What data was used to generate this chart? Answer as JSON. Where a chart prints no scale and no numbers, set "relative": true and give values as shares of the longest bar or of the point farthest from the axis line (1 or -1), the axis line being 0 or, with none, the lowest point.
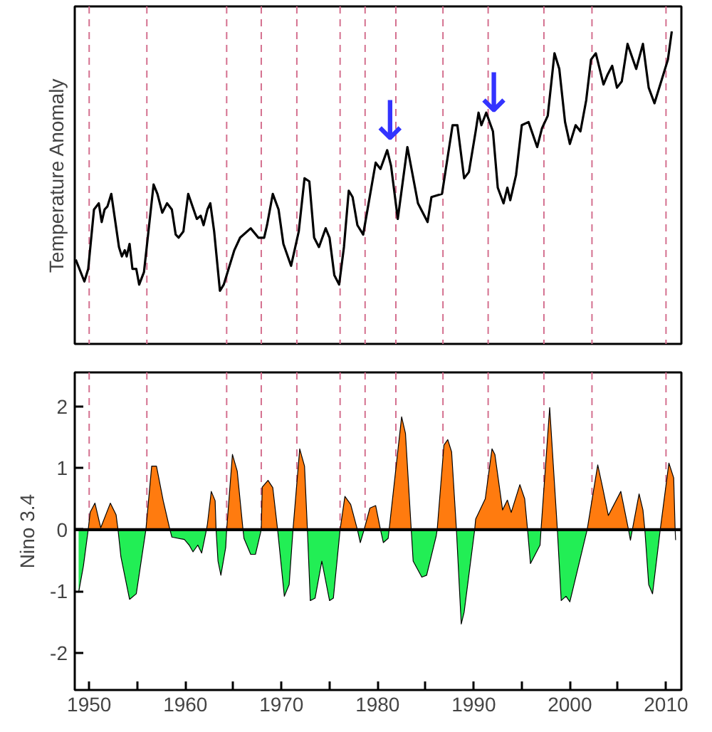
{
  "chart_data": [
    {
      "type": "line",
      "ylabel": "Temperature Anomaly",
      "relative": true,
      "xlim": [
        1948.5,
        2011.6
      ],
      "tick_labels": false,
      "grid": false,
      "x": [
        1948.6,
        1949.5,
        1949.9,
        1950.5,
        1951.0,
        1951.3,
        1951.6,
        1951.9,
        1952.3,
        1953.1,
        1953.4,
        1953.7,
        1953.9,
        1954.2,
        1954.5,
        1954.9,
        1955.2,
        1955.7,
        1956.7,
        1957.1,
        1957.6,
        1958.1,
        1958.6,
        1959.0,
        1959.3,
        1959.8,
        1960.3,
        1961.2,
        1961.6,
        1961.9,
        1962.3,
        1962.6,
        1963.0,
        1963.6,
        1964.0,
        1965.1,
        1965.7,
        1966.8,
        1967.6,
        1968.2,
        1968.5,
        1969.1,
        1969.7,
        1970.2,
        1971.0,
        1971.8,
        1972.4,
        1972.9,
        1973.4,
        1973.9,
        1974.6,
        1975.0,
        1975.5,
        1976.0,
        1976.5,
        1977.0,
        1977.4,
        1977.9,
        1978.5,
        1979.8,
        1980.3,
        1981.0,
        1981.4,
        1982.1,
        1983.1,
        1984.2,
        1985.2,
        1985.6,
        1986.7,
        1987.8,
        1988.3,
        1989.0,
        1989.5,
        1990.2,
        1990.5,
        1990.8,
        1991.3,
        1992.0,
        1992.5,
        1993.1,
        1993.5,
        1993.8,
        1994.4,
        1995.0,
        1995.7,
        1996.6,
        1997.1,
        1997.7,
        1998.4,
        1998.9,
        1999.5,
        2000.0,
        2000.6,
        2001.1,
        2001.7,
        2002.2,
        2002.7,
        2003.5,
        2003.9,
        2004.4,
        2004.9,
        2005.4,
        2006.0,
        2006.9,
        2007.6,
        2008.2,
        2008.8,
        2010.2,
        2010.6
      ],
      "series": [
        {
          "color": "#000000",
          "values": [
            0.27,
            0.2,
            0.24,
            0.43,
            0.45,
            0.39,
            0.43,
            0.44,
            0.48,
            0.31,
            0.28,
            0.3,
            0.28,
            0.32,
            0.24,
            0.24,
            0.19,
            0.23,
            0.51,
            0.48,
            0.42,
            0.45,
            0.43,
            0.35,
            0.34,
            0.36,
            0.48,
            0.4,
            0.41,
            0.38,
            0.43,
            0.45,
            0.36,
            0.17,
            0.19,
            0.3,
            0.34,
            0.37,
            0.34,
            0.34,
            0.38,
            0.48,
            0.43,
            0.32,
            0.25,
            0.36,
            0.53,
            0.52,
            0.34,
            0.31,
            0.37,
            0.34,
            0.22,
            0.19,
            0.31,
            0.49,
            0.47,
            0.38,
            0.35,
            0.58,
            0.56,
            0.62,
            0.57,
            0.4,
            0.63,
            0.45,
            0.39,
            0.47,
            0.48,
            0.7,
            0.7,
            0.53,
            0.55,
            0.68,
            0.74,
            0.7,
            0.74,
            0.68,
            0.5,
            0.45,
            0.5,
            0.46,
            0.54,
            0.7,
            0.71,
            0.63,
            0.69,
            0.73,
            0.93,
            0.88,
            0.71,
            0.64,
            0.7,
            0.68,
            0.78,
            0.91,
            0.93,
            0.83,
            0.86,
            0.89,
            0.82,
            0.84,
            0.96,
            0.88,
            0.96,
            0.82,
            0.77,
            0.91,
            1.0
          ]
        }
      ],
      "ref_lines": [
        {
          "axis": "x",
          "value": 1950.0,
          "color": "#d4708f",
          "line_style": "dashed"
        },
        {
          "axis": "x",
          "value": 1956.0,
          "color": "#d4708f",
          "line_style": "dashed"
        },
        {
          "axis": "x",
          "value": 1964.3,
          "color": "#d4708f",
          "line_style": "dashed"
        },
        {
          "axis": "x",
          "value": 1967.9,
          "color": "#d4708f",
          "line_style": "dashed"
        },
        {
          "axis": "x",
          "value": 1971.6,
          "color": "#d4708f",
          "line_style": "dashed"
        },
        {
          "axis": "x",
          "value": 1976.1,
          "color": "#d4708f",
          "line_style": "dashed"
        },
        {
          "axis": "x",
          "value": 1978.7,
          "color": "#d4708f",
          "line_style": "dashed"
        },
        {
          "axis": "x",
          "value": 1981.9,
          "color": "#d4708f",
          "line_style": "dashed"
        },
        {
          "axis": "x",
          "value": 1986.8,
          "color": "#d4708f",
          "line_style": "dashed"
        },
        {
          "axis": "x",
          "value": 1991.5,
          "color": "#d4708f",
          "line_style": "dashed"
        },
        {
          "axis": "x",
          "value": 1997.3,
          "color": "#d4708f",
          "line_style": "dashed"
        },
        {
          "axis": "x",
          "value": 2002.3,
          "color": "#d4708f",
          "line_style": "dashed"
        },
        {
          "axis": "x",
          "value": 2010.0,
          "color": "#d4708f",
          "line_style": "dashed"
        }
      ],
      "annotations": [
        {
          "text": "↓",
          "x": 1981.3,
          "y": 0.64
        },
        {
          "text": "↓",
          "x": 1992.1,
          "y": 0.73
        }
      ]
    },
    {
      "type": "area",
      "ylabel": "Nino 3.4",
      "xlim": [
        1948.5,
        2011.6
      ],
      "ylim": [
        -2.6,
        2.55
      ],
      "yticks": [
        -2,
        -1,
        0,
        1,
        2
      ],
      "grid": false,
      "xticks": [
        1950,
        {
          "value": 1955,
          "label": null
        },
        1960,
        {
          "value": 1965,
          "label": null
        },
        1970,
        {
          "value": 1975,
          "label": null
        },
        1980,
        {
          "value": 1985,
          "label": null
        },
        1990,
        {
          "value": 1995,
          "label": null
        },
        2000,
        {
          "value": 2005,
          "label": null
        },
        2010
      ],
      "series": [
        {
          "color": "#ff7b0f",
          "x": [
            1949.9,
            1950.1,
            1950.6,
            1951.2,
            1952.2,
            1952.8,
            1953.0,
            1955.9,
            1956.5,
            1957.0,
            1957.7,
            1958.4,
            1962.2,
            1962.3,
            1962.7,
            1963.1,
            1963.2,
            1964.3,
            1964.9,
            1965.4,
            1966.0,
            1967.9,
            1968.0,
            1968.6,
            1969.1,
            1969.6,
            1971.2,
            1971.9,
            1972.4,
            1972.7,
            1976.1,
            1976.6,
            1977.2,
            1977.9,
            1978.6,
            1979.2,
            1979.8,
            1980.3,
            1981.2,
            1982.5,
            1982.9,
            1983.5,
            1986.2,
            1986.9,
            1987.3,
            1987.7,
            1988.2,
            1990.1,
            1990.2,
            1991.2,
            1991.9,
            1992.2,
            1993.0,
            1993.5,
            1993.9,
            1994.8,
            1995.3,
            1995.6,
            1997.0,
            1997.9,
            1998.7,
            2001.8,
            2002.9,
            2003.4,
            2004.0,
            2005.3,
            2006.1,
            2006.5,
            2007.2,
            2007.6,
            2007.8,
            2009.4,
            2010.3,
            2010.8,
            2010.95
          ],
          "values": [
            0,
            0.28,
            0.43,
            0.03,
            0.43,
            0.24,
            0,
            0,
            1.03,
            1.03,
            0.47,
            0,
            0,
            0.09,
            0.62,
            0.47,
            0,
            0,
            1.22,
            0.95,
            0,
            0,
            0.69,
            0.8,
            0.68,
            0,
            0,
            1.31,
            1.03,
            0,
            0,
            0.54,
            0.41,
            0,
            0,
            0.35,
            0.39,
            0,
            0,
            1.83,
            1.56,
            0,
            0,
            1.37,
            1.46,
            1.26,
            0,
            0,
            0.17,
            0.5,
            1.31,
            1.22,
            0.32,
            0.48,
            0.28,
            0.73,
            0.5,
            0,
            0,
            1.98,
            0,
            0,
            1.05,
            0.69,
            0.23,
            0.62,
            0,
            0,
            0.58,
            0.32,
            0,
            0,
            1.08,
            0.84,
            0
          ]
        },
        {
          "color": "#22ee55",
          "x": [
            1948.9,
            1949.4,
            1949.9,
            1953.0,
            1953.3,
            1954.2,
            1954.9,
            1955.9,
            1958.4,
            1958.6,
            1959.9,
            1960.4,
            1960.8,
            1961.3,
            1961.7,
            1962.2,
            1963.2,
            1963.4,
            1963.7,
            1964.2,
            1964.3,
            1966.0,
            1966.1,
            1966.8,
            1967.3,
            1967.9,
            1969.6,
            1970.3,
            1970.8,
            1971.2,
            1972.7,
            1973.0,
            1973.5,
            1974.2,
            1975.0,
            1975.4,
            1976.1,
            1977.9,
            1978.2,
            1978.6,
            1980.3,
            1980.6,
            1981.1,
            1981.2,
            1983.5,
            1983.7,
            1984.6,
            1985.1,
            1986.1,
            1986.2,
            1988.2,
            1988.7,
            1989.0,
            1990.1,
            1995.6,
            1995.9,
            1996.9,
            1997.0,
            1998.7,
            1999.1,
            1999.6,
            2000.0,
            2001.8,
            2006.1,
            2006.3,
            2006.5,
            2007.8,
            2008.2,
            2008.6,
            2009.4,
            2010.95,
            2011.0
          ],
          "values": [
            -1.02,
            -0.59,
            0,
            0,
            -0.44,
            -1.13,
            -1.04,
            0,
            0,
            -0.12,
            -0.16,
            -0.25,
            -0.36,
            -0.25,
            -0.38,
            0,
            0,
            -0.51,
            -0.74,
            -0.29,
            0,
            0,
            -0.14,
            -0.4,
            -0.4,
            0,
            0,
            -1.08,
            -0.89,
            0,
            0,
            -1.15,
            -1.11,
            -0.51,
            -1.15,
            -1.11,
            0,
            0,
            -0.21,
            0,
            0,
            -0.21,
            -0.14,
            0,
            0,
            -0.51,
            -0.77,
            -0.74,
            -0.1,
            0,
            0,
            -1.53,
            -1.34,
            0,
            0,
            -0.55,
            -0.25,
            0,
            0,
            -1.15,
            -1.08,
            -1.17,
            0,
            0,
            -0.17,
            0,
            0,
            -0.89,
            -1.04,
            0,
            0,
            -0.17
          ]
        }
      ],
      "ref_lines": [
        {
          "axis": "y",
          "value": 0,
          "color": "#000000",
          "line_style": "solid"
        },
        {
          "axis": "x",
          "value": 1950.0,
          "color": "#d4708f",
          "line_style": "dashed"
        },
        {
          "axis": "x",
          "value": 1956.0,
          "color": "#d4708f",
          "line_style": "dashed"
        },
        {
          "axis": "x",
          "value": 1964.3,
          "color": "#d4708f",
          "line_style": "dashed"
        },
        {
          "axis": "x",
          "value": 1967.9,
          "color": "#d4708f",
          "line_style": "dashed"
        },
        {
          "axis": "x",
          "value": 1971.6,
          "color": "#d4708f",
          "line_style": "dashed"
        },
        {
          "axis": "x",
          "value": 1976.1,
          "color": "#d4708f",
          "line_style": "dashed"
        },
        {
          "axis": "x",
          "value": 1978.7,
          "color": "#d4708f",
          "line_style": "dashed"
        },
        {
          "axis": "x",
          "value": 1981.9,
          "color": "#d4708f",
          "line_style": "dashed"
        },
        {
          "axis": "x",
          "value": 1986.8,
          "color": "#d4708f",
          "line_style": "dashed"
        },
        {
          "axis": "x",
          "value": 1991.5,
          "color": "#d4708f",
          "line_style": "dashed"
        },
        {
          "axis": "x",
          "value": 1997.3,
          "color": "#d4708f",
          "line_style": "dashed"
        },
        {
          "axis": "x",
          "value": 2002.3,
          "color": "#d4708f",
          "line_style": "dashed"
        },
        {
          "axis": "x",
          "value": 2010.0,
          "color": "#d4708f",
          "line_style": "dashed"
        }
      ]
    }
  ]
}
